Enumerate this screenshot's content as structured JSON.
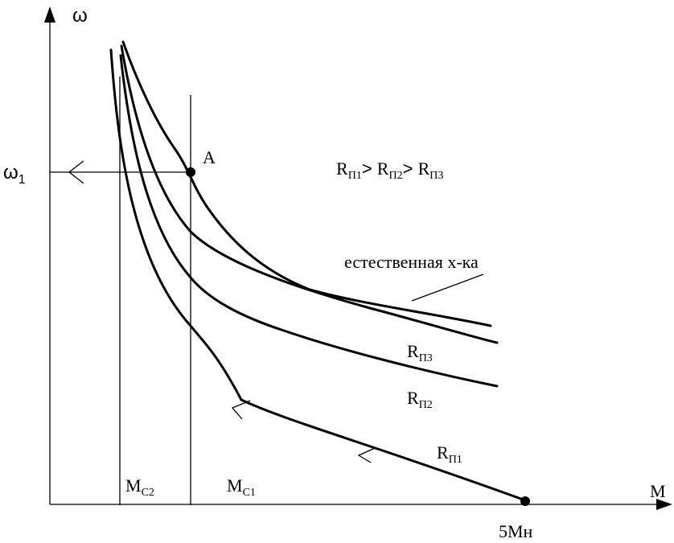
{
  "axes": {
    "y_label": "ω",
    "y_tick": {
      "symbol": "ω",
      "subscript": "1"
    },
    "x_label": "M",
    "x_tick": "5Mн"
  },
  "point_label": "A",
  "relation": {
    "r1": {
      "base": "R",
      "sub": "П1"
    },
    "gt1": "> ",
    "r2": {
      "base": "R",
      "sub": "П2"
    },
    "gt2": "> ",
    "r3": {
      "base": "R",
      "sub": "П3"
    }
  },
  "curves": {
    "natural": "естественная х-ка",
    "r3": {
      "base": "R",
      "sub": "П3"
    },
    "r2": {
      "base": "R",
      "sub": "П2"
    },
    "r1": {
      "base": "R",
      "sub": "П1"
    }
  },
  "regions": {
    "mc2": {
      "base": "M",
      "sub": "C2"
    },
    "mc1": {
      "base": "M",
      "sub": "C1"
    }
  }
}
